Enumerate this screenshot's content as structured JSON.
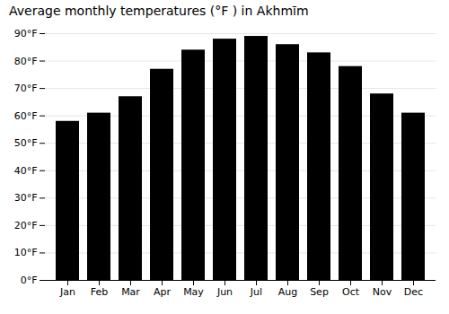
{
  "chart_data": {
    "type": "bar",
    "title": "Average monthly temperatures (°F ) in Akhmīm",
    "categories": [
      "Jan",
      "Feb",
      "Mar",
      "Apr",
      "May",
      "Jun",
      "Jul",
      "Aug",
      "Sep",
      "Oct",
      "Nov",
      "Dec"
    ],
    "values": [
      58,
      61,
      67,
      77,
      84,
      88,
      89,
      86,
      83,
      78,
      68,
      61
    ],
    "ylim": [
      0,
      90
    ],
    "yticks": [
      {
        "value": 0,
        "label": "0°F"
      },
      {
        "value": 10,
        "label": "10°F"
      },
      {
        "value": 20,
        "label": "20°F"
      },
      {
        "value": 30,
        "label": "30°F"
      },
      {
        "value": 40,
        "label": "40°F"
      },
      {
        "value": 50,
        "label": "50°F"
      },
      {
        "value": 60,
        "label": "60°F"
      },
      {
        "value": 70,
        "label": "70°F"
      },
      {
        "value": 80,
        "label": "80°F"
      },
      {
        "value": 90,
        "label": "90°F"
      }
    ],
    "grid": true
  }
}
